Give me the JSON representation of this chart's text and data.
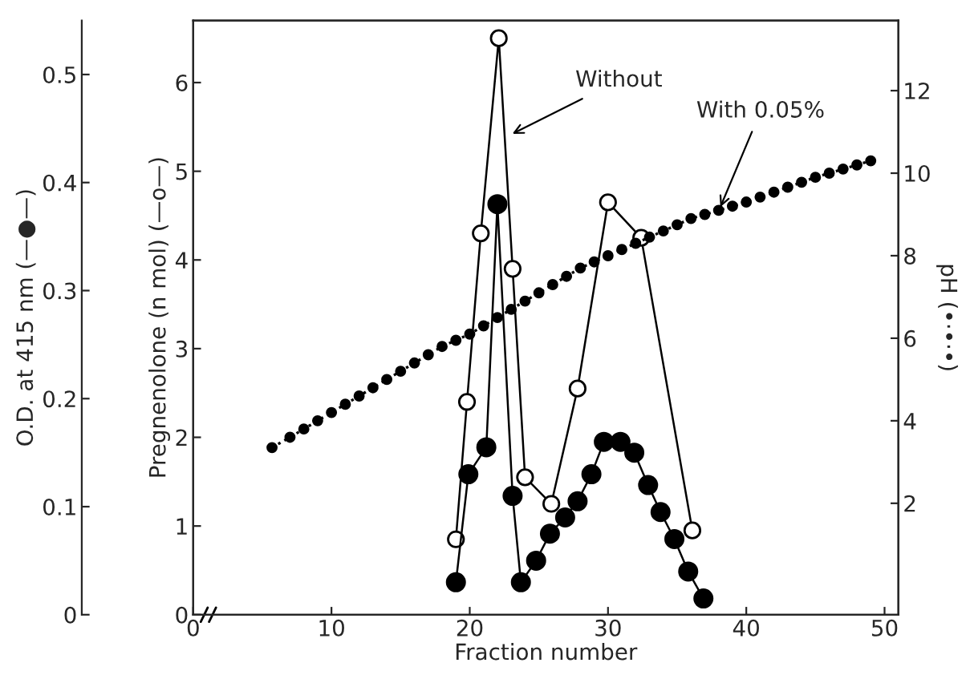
{
  "chart_data": {
    "type": "line",
    "xlabel": "Fraction number",
    "ylabel": "Pregnenolone (n mol) (—o—)",
    "y2label": "pH (•·•·•)",
    "y3label": "O.D. at 415 nm (—●—)",
    "xlim": [
      0,
      51
    ],
    "xticks": [
      0,
      10,
      20,
      30,
      40,
      50
    ],
    "ylim": [
      0,
      6.7
    ],
    "yticks": [
      0,
      1,
      2,
      3,
      4,
      5,
      6
    ],
    "y2lim": [
      -0.7,
      13.7
    ],
    "y2ticks": [
      2,
      4,
      6,
      8,
      10,
      12
    ],
    "y3lim": [
      0,
      0.55
    ],
    "y3ticks": [
      0,
      0.1,
      0.2,
      0.3,
      0.4,
      0.5
    ],
    "grid": false,
    "legend": false,
    "series": [
      {
        "axis": "y",
        "color": "#000000",
        "marker": "circle",
        "line_style": "solid",
        "x": [
          19.0,
          19.8,
          20.8,
          22.1,
          23.1,
          24.0,
          25.9,
          27.8,
          30.0,
          32.4,
          36.1
        ],
        "values": [
          0.85,
          2.4,
          4.3,
          6.5,
          3.9,
          1.55,
          1.25,
          2.55,
          4.65,
          4.25,
          0.95
        ]
      },
      {
        "axis": "y3",
        "color": "#000000",
        "marker": "circle",
        "line_style": "solid",
        "x": [
          19.0,
          19.9,
          21.2,
          22.0,
          23.1,
          23.7,
          24.8,
          25.8,
          26.9,
          27.8,
          28.8,
          29.7,
          30.9,
          31.9,
          32.9,
          33.8,
          34.8,
          35.8,
          36.9
        ],
        "values": [
          0.03,
          0.13,
          0.155,
          0.38,
          0.11,
          0.03,
          0.05,
          0.075,
          0.09,
          0.105,
          0.13,
          0.16,
          0.16,
          0.15,
          0.12,
          0.095,
          0.07,
          0.04,
          0.015
        ]
      },
      {
        "axis": "y2",
        "color": "#000000",
        "marker": "circle",
        "line_style": "dotted",
        "x": [
          5.7,
          7,
          8,
          9,
          10,
          11,
          12,
          13,
          14,
          15,
          16,
          17,
          18,
          19,
          20,
          21,
          22,
          23,
          24,
          25,
          26,
          27,
          28,
          29,
          30,
          31,
          32,
          33,
          34,
          35,
          36,
          37,
          38,
          39,
          40,
          41,
          42,
          43,
          44,
          45,
          46,
          47,
          48,
          49
        ],
        "values": [
          3.35,
          3.6,
          3.8,
          4.0,
          4.2,
          4.4,
          4.6,
          4.8,
          5.0,
          5.2,
          5.4,
          5.6,
          5.8,
          5.95,
          6.1,
          6.3,
          6.5,
          6.7,
          6.9,
          7.1,
          7.3,
          7.5,
          7.7,
          7.85,
          8.0,
          8.15,
          8.3,
          8.45,
          8.6,
          8.75,
          8.9,
          9.0,
          9.1,
          9.2,
          9.3,
          9.42,
          9.54,
          9.66,
          9.78,
          9.9,
          10.0,
          10.1,
          10.2,
          10.3
        ]
      }
    ],
    "annotations": [
      {
        "text": "Without",
        "x": 22.8,
        "y": 5.4
      },
      {
        "text": "With 0.05%",
        "x": 38,
        "y": 4.55
      }
    ]
  }
}
